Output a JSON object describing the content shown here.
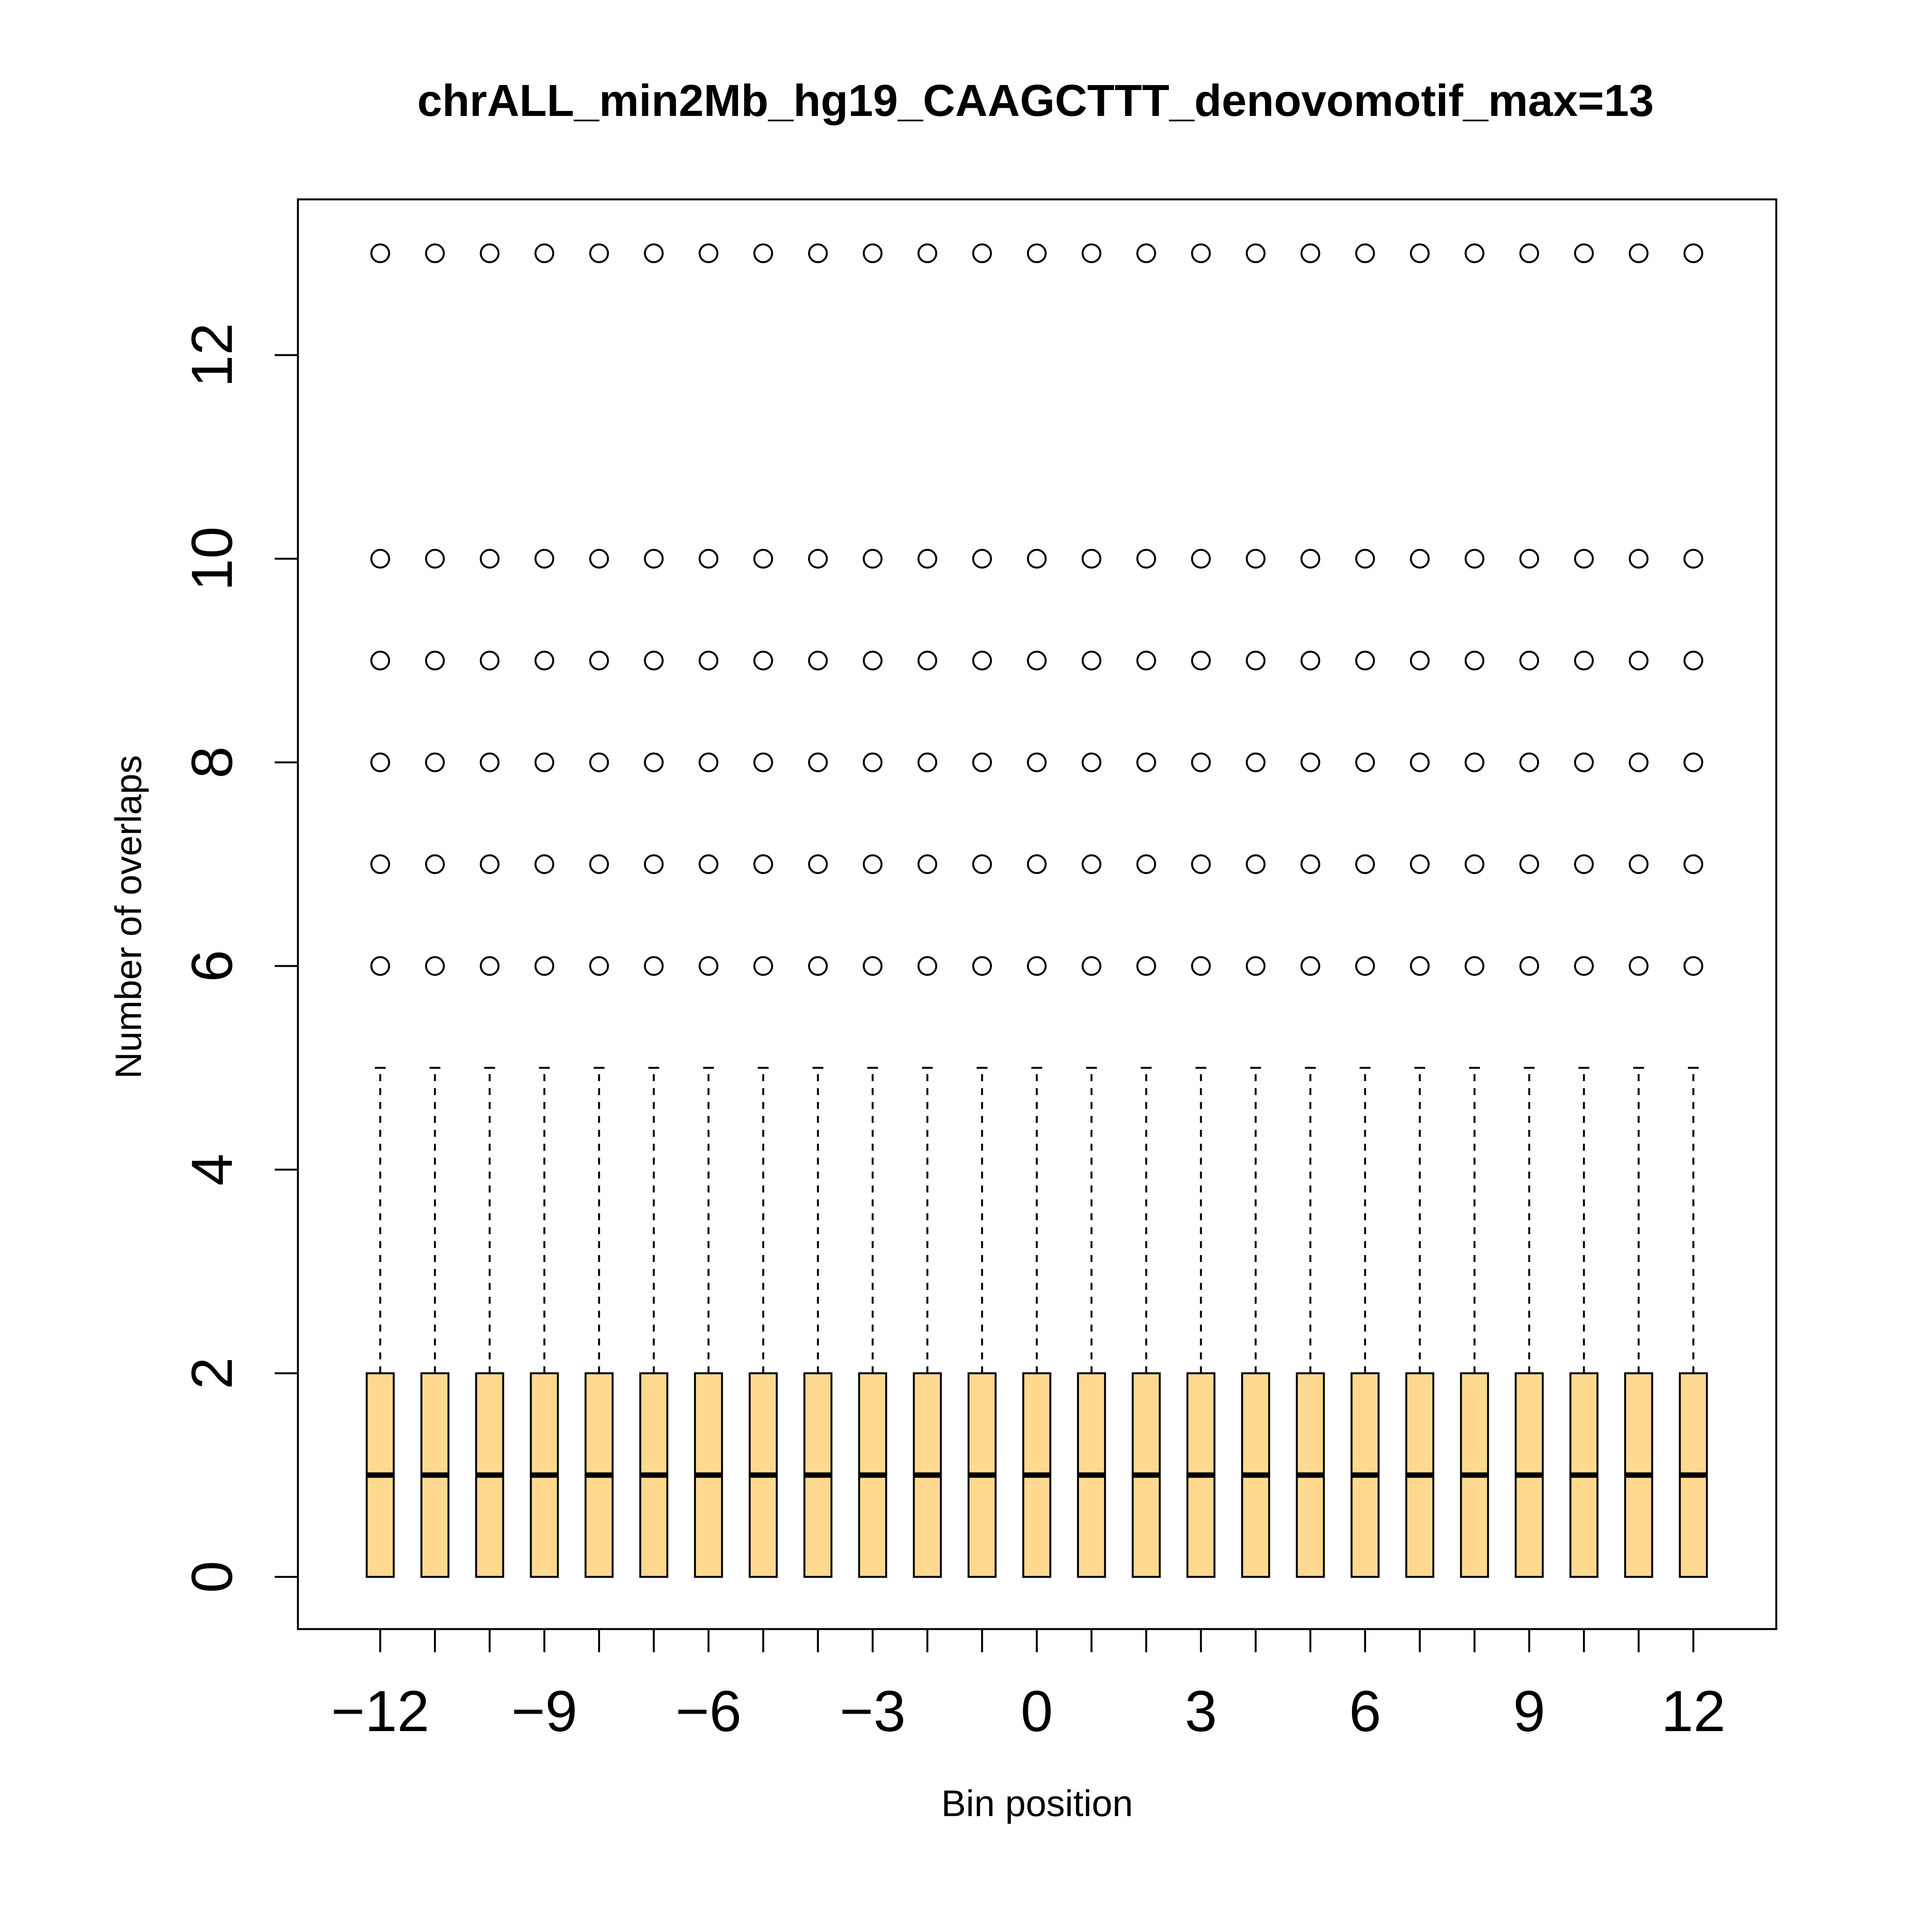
{
  "chart_data": {
    "type": "boxplot",
    "title": "chrALL_min2Mb_hg19_CAAGCTTT_denovomotif_max=13",
    "xlabel": "Bin position",
    "ylabel": "Number of overlaps",
    "x_positions": [
      -12,
      -11,
      -10,
      -9,
      -8,
      -7,
      -6,
      -5,
      -4,
      -3,
      -2,
      -1,
      0,
      1,
      2,
      3,
      4,
      5,
      6,
      7,
      8,
      9,
      10,
      11,
      12
    ],
    "x_tick_labels": [
      "−12",
      "−9",
      "−6",
      "−3",
      "0",
      "3",
      "6",
      "9",
      "12"
    ],
    "y_tick_labels": [
      "0",
      "2",
      "4",
      "6",
      "8",
      "10",
      "12"
    ],
    "ylim": [
      -0.5,
      13.5
    ],
    "box_stats": {
      "whisker_low": 0,
      "q1": 0,
      "median": 1,
      "q3": 2,
      "whisker_high": 5,
      "outliers": [
        6,
        7,
        8,
        9,
        10,
        13
      ]
    },
    "box_fill_color": "#FFD98F",
    "grid": false,
    "legend": "none"
  }
}
